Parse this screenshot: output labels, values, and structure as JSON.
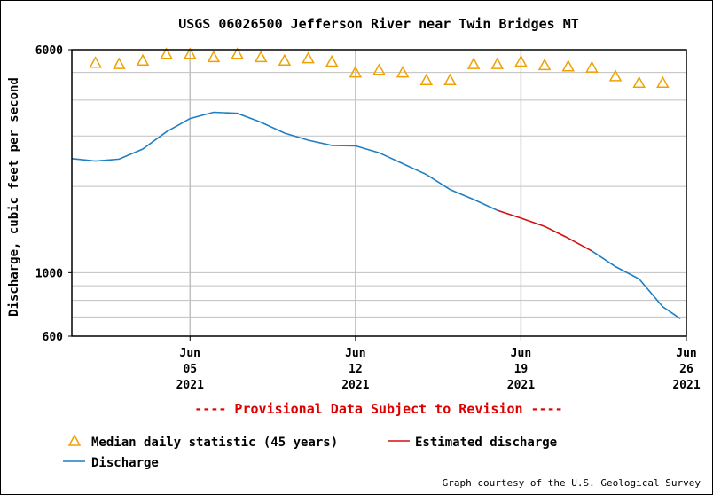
{
  "chart_data": {
    "type": "line",
    "title": "USGS 06026500 Jefferson River near Twin Bridges MT",
    "ylabel": "Discharge, cubic feet per second",
    "xlabel": "",
    "yscale": "log",
    "ylim": [
      600,
      6000
    ],
    "xlim": [
      "2021-05-31",
      "2021-06-26"
    ],
    "y_ticks": [
      600,
      1000,
      6000
    ],
    "y_tick_labels": [
      "600",
      "1000",
      "6000"
    ],
    "y_minor_gridlines": [
      700,
      800,
      900,
      2000,
      3000,
      4000,
      5000
    ],
    "x_ticks": [
      {
        "date": "2021-06-05",
        "month": "Jun",
        "day": "05",
        "year": "2021"
      },
      {
        "date": "2021-06-12",
        "month": "Jun",
        "day": "12",
        "year": "2021"
      },
      {
        "date": "2021-06-19",
        "month": "Jun",
        "day": "19",
        "year": "2021"
      },
      {
        "date": "2021-06-26",
        "month": "Jun",
        "day": "26",
        "year": "2021"
      }
    ],
    "grid": true,
    "notice": "---- Provisional Data Subject to Revision ----",
    "credit": "Graph courtesy of the U.S. Geological Survey",
    "colors": {
      "discharge": "#1f7fc4",
      "estimated": "#d01010",
      "median": "#f0a000",
      "notice": "#dd0000",
      "grid": "#c0c0c0"
    },
    "legend": {
      "placement": "bottom",
      "items": [
        {
          "label": "Median daily statistic (45 years)",
          "marker": "triangle"
        },
        {
          "label": "Estimated discharge",
          "marker": "line-red"
        },
        {
          "label": "Discharge",
          "marker": "line-blue"
        }
      ]
    },
    "series": [
      {
        "name": "Median daily statistic (45 years)",
        "kind": "triangle-markers",
        "x": [
          "2021-06-01",
          "2021-06-02",
          "2021-06-03",
          "2021-06-04",
          "2021-06-05",
          "2021-06-06",
          "2021-06-07",
          "2021-06-08",
          "2021-06-09",
          "2021-06-10",
          "2021-06-11",
          "2021-06-12",
          "2021-06-13",
          "2021-06-14",
          "2021-06-15",
          "2021-06-16",
          "2021-06-17",
          "2021-06-18",
          "2021-06-19",
          "2021-06-20",
          "2021-06-21",
          "2021-06-22",
          "2021-06-23",
          "2021-06-24",
          "2021-06-25"
        ],
        "values": [
          5400,
          5350,
          5500,
          5800,
          5800,
          5650,
          5800,
          5650,
          5500,
          5600,
          5450,
          5000,
          5100,
          5000,
          4700,
          4700,
          5350,
          5350,
          5450,
          5300,
          5250,
          5200,
          4850,
          4600,
          4600
        ]
      },
      {
        "name": "Discharge",
        "kind": "line",
        "x": [
          "2021-05-31",
          "2021-06-01",
          "2021-06-02",
          "2021-06-03",
          "2021-06-04",
          "2021-06-05",
          "2021-06-06",
          "2021-06-07",
          "2021-06-08",
          "2021-06-09",
          "2021-06-10",
          "2021-06-11",
          "2021-06-12",
          "2021-06-13",
          "2021-06-14",
          "2021-06-15",
          "2021-06-16",
          "2021-06-17",
          "2021-06-18"
        ],
        "values": [
          2500,
          2450,
          2490,
          2700,
          3100,
          3450,
          3630,
          3600,
          3350,
          3070,
          2900,
          2780,
          2770,
          2620,
          2400,
          2200,
          1950,
          1800,
          1650
        ]
      },
      {
        "name": "Estimated discharge",
        "kind": "line",
        "x": [
          "2021-06-18",
          "2021-06-19",
          "2021-06-20",
          "2021-06-21",
          "2021-06-22"
        ],
        "values": [
          1650,
          1550,
          1450,
          1320,
          1190
        ]
      },
      {
        "name": "Discharge",
        "kind": "line",
        "x": [
          "2021-06-22",
          "2021-06-23",
          "2021-06-24",
          "2021-06-25",
          "2021-06-25T18:00"
        ],
        "values": [
          1190,
          1050,
          950,
          760,
          690
        ]
      }
    ]
  }
}
